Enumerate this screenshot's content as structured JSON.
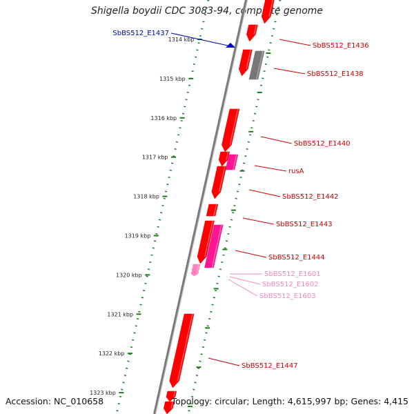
{
  "header": {
    "title": "Shigella boydii CDC 3083-94, complete genome"
  },
  "footer": {
    "accession": "Accession: NC_010658",
    "topology": "Topology: circular; Length: 4,615,997 bp; Genes: 4,415"
  },
  "colors": {
    "gene_red": "#ff0000",
    "gene_magenta": "#ff1493",
    "gene_pink": "#ff80c0",
    "gene_gray": "#777777",
    "gene_blue": "#0000cc",
    "ticks_green": "#1a7a1a",
    "backbone": "#808080",
    "label_red": "#cc0000",
    "label_pink": "#ee88bb",
    "label_blue": "#0000aa"
  },
  "ruler": {
    "ticks": [
      {
        "label": "1314 kbp"
      },
      {
        "label": "1315 kbp"
      },
      {
        "label": "1316 kbp"
      },
      {
        "label": "1317 kbp"
      },
      {
        "label": "1318 kbp"
      },
      {
        "label": "1319 kbp"
      },
      {
        "label": "1320 kbp"
      },
      {
        "label": "1321 kbp"
      },
      {
        "label": "1322 kbp"
      },
      {
        "label": "1323 kbp"
      }
    ]
  },
  "gene_labels": [
    {
      "text": "SbBS512_E1437",
      "color": "label_blue"
    },
    {
      "text": "SbBS512_E1436",
      "color": "label_red"
    },
    {
      "text": "SbBS512_E1438",
      "color": "label_red"
    },
    {
      "text": "SbBS512_E1440",
      "color": "label_red"
    },
    {
      "text": "rusA",
      "color": "label_red"
    },
    {
      "text": "SbBS512_E1442",
      "color": "label_red"
    },
    {
      "text": "SbBS512_E1443",
      "color": "label_red"
    },
    {
      "text": "SbBS512_E1444",
      "color": "label_red"
    },
    {
      "text": "SbBS512_E1601",
      "color": "label_pink"
    },
    {
      "text": "SbBS512_E1602",
      "color": "label_pink"
    },
    {
      "text": "SbBS512_E1603",
      "color": "label_pink"
    },
    {
      "text": "SbBS512_E1447",
      "color": "label_red"
    }
  ]
}
